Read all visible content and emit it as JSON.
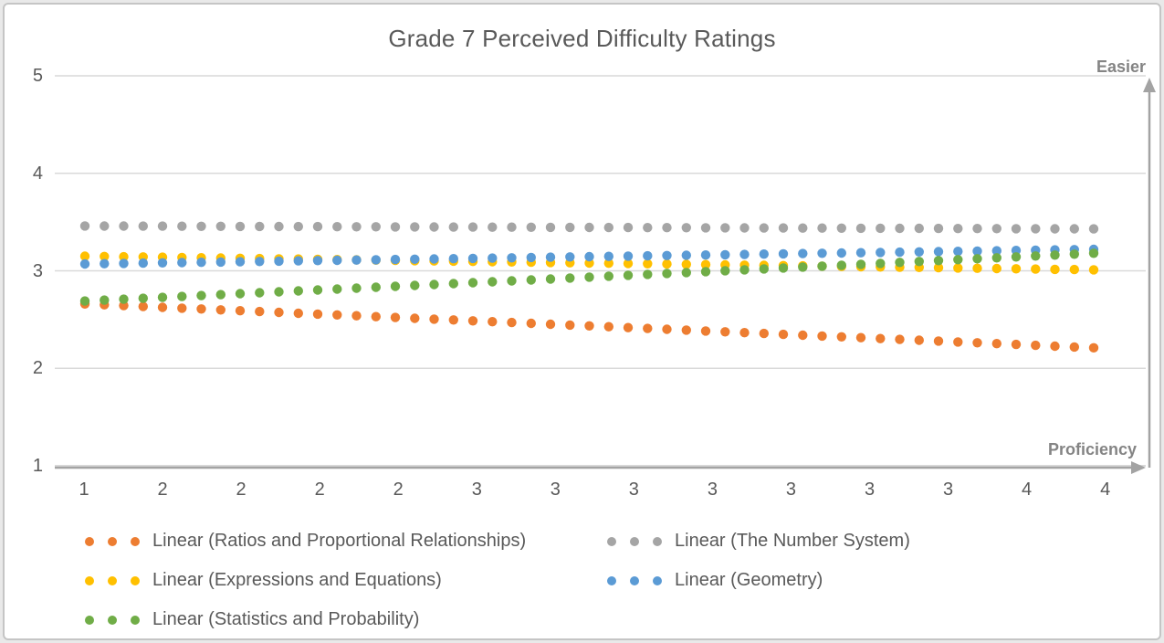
{
  "window": {
    "background_color": "#e9e9e9",
    "card_background": "#ffffff",
    "card_border_color": "#c5c5c5"
  },
  "chart_data": {
    "type": "scatter",
    "title": "Grade 7 Perceived Difficulty Ratings",
    "x_axis_label": "Proficiency",
    "y_axis_annotation": "Easier",
    "ylim": [
      1,
      5
    ],
    "y_ticks": [
      "1",
      "2",
      "3",
      "4",
      "5"
    ],
    "x_tick_labels": [
      "1",
      "2",
      "2",
      "2",
      "2",
      "3",
      "3",
      "3",
      "3",
      "3",
      "3",
      "3",
      "4",
      "4"
    ],
    "grid": "horizontal-only",
    "gridline_color": "#d9d9d9",
    "axis_color": "#a3a3a3",
    "points_per_series": 53,
    "series": [
      {
        "name": "Linear (Ratios and Proportional Relationships)",
        "color": "#ED7D31",
        "trend_start": 2.66,
        "trend_end": 2.21
      },
      {
        "name": "Linear (The Number System)",
        "color": "#A5A5A5",
        "trend_start": 3.46,
        "trend_end": 3.43
      },
      {
        "name": "Linear (Expressions and Equations)",
        "color": "#FFC000",
        "trend_start": 3.15,
        "trend_end": 3.01
      },
      {
        "name": "Linear (Geometry)",
        "color": "#5B9BD5",
        "trend_start": 3.07,
        "trend_end": 3.22
      },
      {
        "name": "Linear (Statistics and Probability)",
        "color": "#70AD47",
        "trend_start": 2.69,
        "trend_end": 3.18
      }
    ],
    "legend": {
      "position": "bottom",
      "columns": 2,
      "marker_style": "three-dots"
    },
    "text_color": "#595959",
    "annotation_color": "#848484"
  }
}
